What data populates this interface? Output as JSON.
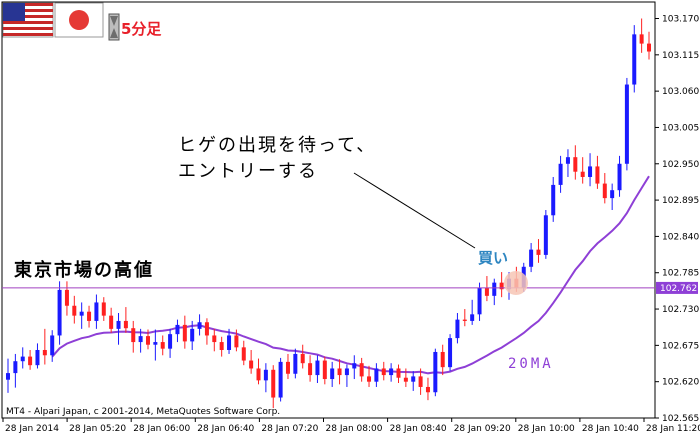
{
  "header": {
    "flag_us": "us-flag-icon",
    "flag_jp": "japan-flag-icon",
    "timer_icon": "hourglass-icon",
    "timeframe_label": "5分足"
  },
  "annotations": {
    "line1": "ヒゲの出現を待って、",
    "line2": "エントリーする",
    "tokyo_high": "東京市場の高値",
    "buy_label": "買い",
    "ma_label": "20MA",
    "copyright": "MT4 - Alpari Japan, c 2001-2014, MetaQuotes Software Corp."
  },
  "colors": {
    "bull": "#1a1aff",
    "bear": "#ff2020",
    "ma": "#8e3fd6",
    "high_line": "#a040c0",
    "price_tag": "#8e3fd6",
    "buy_highlight": "#f7c6b5"
  },
  "chart_data": {
    "type": "candlestick",
    "instrument_tz_note": "",
    "y_ticks": [
      "103.170",
      "103.115",
      "103.060",
      "103.005",
      "102.950",
      "102.895",
      "102.840",
      "102.785",
      "102.730",
      "102.675",
      "102.620",
      "102.565"
    ],
    "ylim": [
      102.565,
      103.195
    ],
    "x_ticks": [
      "28 Jan 2014",
      "28 Jan 05:20",
      "28 Jan 06:00",
      "28 Jan 06:40",
      "28 Jan 07:20",
      "28 Jan 08:00",
      "28 Jan 08:40",
      "28 Jan 09:20",
      "28 Jan 10:00",
      "28 Jan 10:40",
      "28 Jan 11:20"
    ],
    "tokyo_high_level": 102.762,
    "tokyo_high_tag": "102.762",
    "ma_period_label": "20MA",
    "candles": [
      [
        102.623,
        102.655,
        102.603,
        102.633
      ],
      [
        102.633,
        102.662,
        102.611,
        102.651
      ],
      [
        102.651,
        102.672,
        102.64,
        102.658
      ],
      [
        102.658,
        102.668,
        102.638,
        102.645
      ],
      [
        102.645,
        102.678,
        102.64,
        102.668
      ],
      [
        102.668,
        102.7,
        102.646,
        102.66
      ],
      [
        102.66,
        102.698,
        102.65,
        102.69
      ],
      [
        102.69,
        102.772,
        102.676,
        102.759
      ],
      [
        102.759,
        102.772,
        102.72,
        102.735
      ],
      [
        102.735,
        102.75,
        102.708,
        102.72
      ],
      [
        102.72,
        102.74,
        102.7,
        102.726
      ],
      [
        102.726,
        102.735,
        102.702,
        102.712
      ],
      [
        102.712,
        102.752,
        102.7,
        102.74
      ],
      [
        102.74,
        102.748,
        102.712,
        102.72
      ],
      [
        102.72,
        102.732,
        102.694,
        102.7
      ],
      [
        102.7,
        102.724,
        102.676,
        102.712
      ],
      [
        102.712,
        102.733,
        102.694,
        102.701
      ],
      [
        102.701,
        102.712,
        102.664,
        102.68
      ],
      [
        102.68,
        102.7,
        102.664,
        102.689
      ],
      [
        102.689,
        102.699,
        102.669,
        102.676
      ],
      [
        102.676,
        102.699,
        102.652,
        102.68
      ],
      [
        102.68,
        102.69,
        102.66,
        102.67
      ],
      [
        102.67,
        102.7,
        102.656,
        102.692
      ],
      [
        102.692,
        102.714,
        102.68,
        102.706
      ],
      [
        102.706,
        102.72,
        102.67,
        102.681
      ],
      [
        102.681,
        102.712,
        102.668,
        102.7
      ],
      [
        102.7,
        102.722,
        102.69,
        102.71
      ],
      [
        102.71,
        102.716,
        102.676,
        102.69
      ],
      [
        102.69,
        102.7,
        102.666,
        102.68
      ],
      [
        102.68,
        102.688,
        102.658,
        102.668
      ],
      [
        102.668,
        102.7,
        102.662,
        102.69
      ],
      [
        102.69,
        102.699,
        102.666,
        102.672
      ],
      [
        102.672,
        102.682,
        102.645,
        102.652
      ],
      [
        102.652,
        102.668,
        102.632,
        102.64
      ],
      [
        102.64,
        102.655,
        102.616,
        102.622
      ],
      [
        102.622,
        102.648,
        102.604,
        102.638
      ],
      [
        102.638,
        102.645,
        102.58,
        102.596
      ],
      [
        102.596,
        102.656,
        102.59,
        102.65
      ],
      [
        102.65,
        102.662,
        102.624,
        102.632
      ],
      [
        102.632,
        102.67,
        102.625,
        102.662
      ],
      [
        102.662,
        102.676,
        102.64,
        102.648
      ],
      [
        102.648,
        102.66,
        102.62,
        102.63
      ],
      [
        102.63,
        102.66,
        102.618,
        102.652
      ],
      [
        102.652,
        102.658,
        102.616,
        102.624
      ],
      [
        102.624,
        102.65,
        102.612,
        102.64
      ],
      [
        102.64,
        102.654,
        102.616,
        102.63
      ],
      [
        102.63,
        102.646,
        102.612,
        102.64
      ],
      [
        102.64,
        102.66,
        102.624,
        102.648
      ],
      [
        102.648,
        102.656,
        102.62,
        102.628
      ],
      [
        102.628,
        102.644,
        102.612,
        102.62
      ],
      [
        102.62,
        102.648,
        102.612,
        102.64
      ],
      [
        102.64,
        102.65,
        102.622,
        102.63
      ],
      [
        102.63,
        102.648,
        102.62,
        102.64
      ],
      [
        102.64,
        102.646,
        102.618,
        102.626
      ],
      [
        102.626,
        102.64,
        102.612,
        102.62
      ],
      [
        102.62,
        102.636,
        102.606,
        102.628
      ],
      [
        102.628,
        102.64,
        102.6,
        102.612
      ],
      [
        102.612,
        102.626,
        102.592,
        102.604
      ],
      [
        102.604,
        102.67,
        102.598,
        102.665
      ],
      [
        102.665,
        102.676,
        102.63,
        102.642
      ],
      [
        102.642,
        102.692,
        102.636,
        102.686
      ],
      [
        102.686,
        102.724,
        102.678,
        102.714
      ],
      [
        102.714,
        102.73,
        102.704,
        102.712
      ],
      [
        102.712,
        102.744,
        102.706,
        102.722
      ],
      [
        102.722,
        102.77,
        102.712,
        102.762
      ],
      [
        102.762,
        102.78,
        102.742,
        102.75
      ],
      [
        102.75,
        102.776,
        102.736,
        102.77
      ],
      [
        102.77,
        102.786,
        102.748,
        102.76
      ],
      [
        102.76,
        102.786,
        102.744,
        102.776
      ],
      [
        102.776,
        102.794,
        102.756,
        102.762
      ],
      [
        102.762,
        102.8,
        102.756,
        102.794
      ],
      [
        102.794,
        102.83,
        102.786,
        102.82
      ],
      [
        102.82,
        102.836,
        102.8,
        102.812
      ],
      [
        102.812,
        102.88,
        102.806,
        102.872
      ],
      [
        102.872,
        102.93,
        102.862,
        102.918
      ],
      [
        102.918,
        102.962,
        102.906,
        102.95
      ],
      [
        102.95,
        102.972,
        102.93,
        102.96
      ],
      [
        102.96,
        102.978,
        102.926,
        102.938
      ],
      [
        102.938,
        102.96,
        102.92,
        102.93
      ],
      [
        102.93,
        102.966,
        102.916,
        102.946
      ],
      [
        102.946,
        102.962,
        102.912,
        102.92
      ],
      [
        102.92,
        102.936,
        102.89,
        102.898
      ],
      [
        102.898,
        102.92,
        102.88,
        102.91
      ],
      [
        102.91,
        102.962,
        102.9,
        102.95
      ],
      [
        102.95,
        103.08,
        102.94,
        103.07
      ],
      [
        103.07,
        103.16,
        103.058,
        103.146
      ],
      [
        103.146,
        103.17,
        103.118,
        103.132
      ],
      [
        103.132,
        103.15,
        103.108,
        103.12
      ]
    ]
  }
}
